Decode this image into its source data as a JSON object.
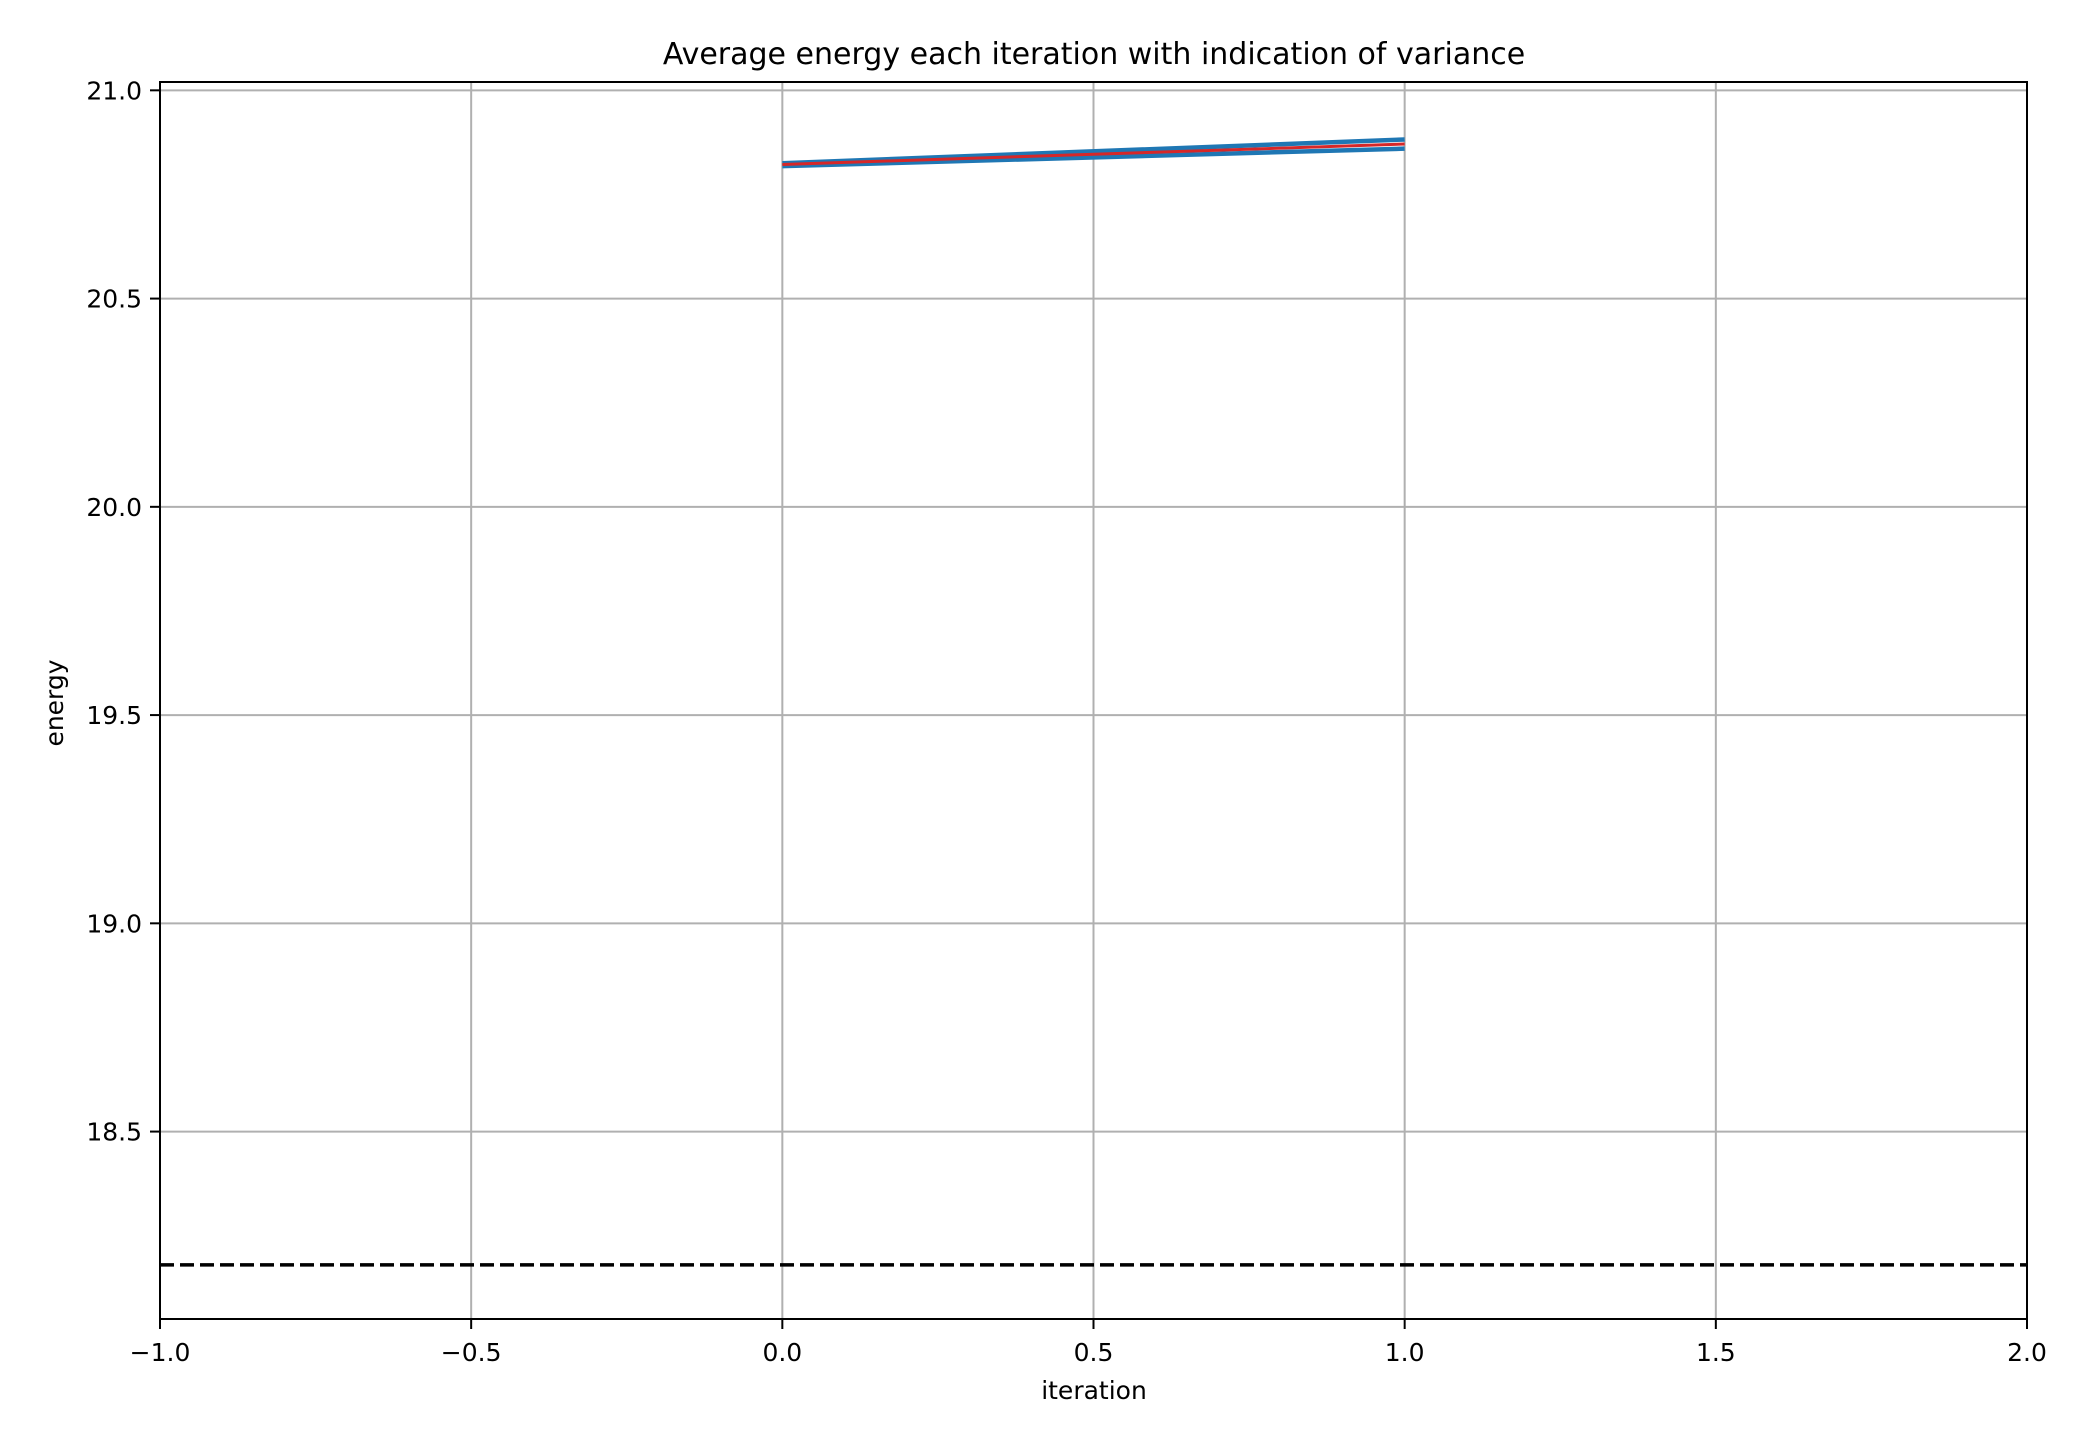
{
  "chart_data": {
    "type": "line",
    "title": "Average energy each iteration with indication of variance",
    "xlabel": "iteration",
    "ylabel": "energy",
    "xlim": [
      -1.0,
      2.0
    ],
    "ylim": [
      18.05,
      21.02
    ],
    "x_ticks": [
      -1.0,
      -0.5,
      0.0,
      0.5,
      1.0,
      1.5,
      2.0
    ],
    "x_tick_labels": [
      "−1.0",
      "−0.5",
      "0.0",
      "0.5",
      "1.0",
      "1.5",
      "2.0"
    ],
    "y_ticks": [
      18.5,
      19.0,
      19.5,
      20.0,
      20.5,
      21.0
    ],
    "y_tick_labels": [
      "18.5",
      "19.0",
      "19.5",
      "20.0",
      "20.5",
      "21.0"
    ],
    "grid": true,
    "legend": "none",
    "series": [
      {
        "role": "upper",
        "color": "#1f77b4",
        "x": [
          0,
          1
        ],
        "y": [
          20.825,
          20.882
        ]
      },
      {
        "role": "lower",
        "color": "#1f77b4",
        "x": [
          0,
          1
        ],
        "y": [
          20.818,
          20.86
        ]
      },
      {
        "role": "mean",
        "color": "#d62728",
        "x": [
          0,
          1
        ],
        "y": [
          20.822,
          20.871
        ]
      }
    ],
    "reference_line": {
      "y": 18.18,
      "style": "dashed",
      "color": "#000000"
    }
  }
}
